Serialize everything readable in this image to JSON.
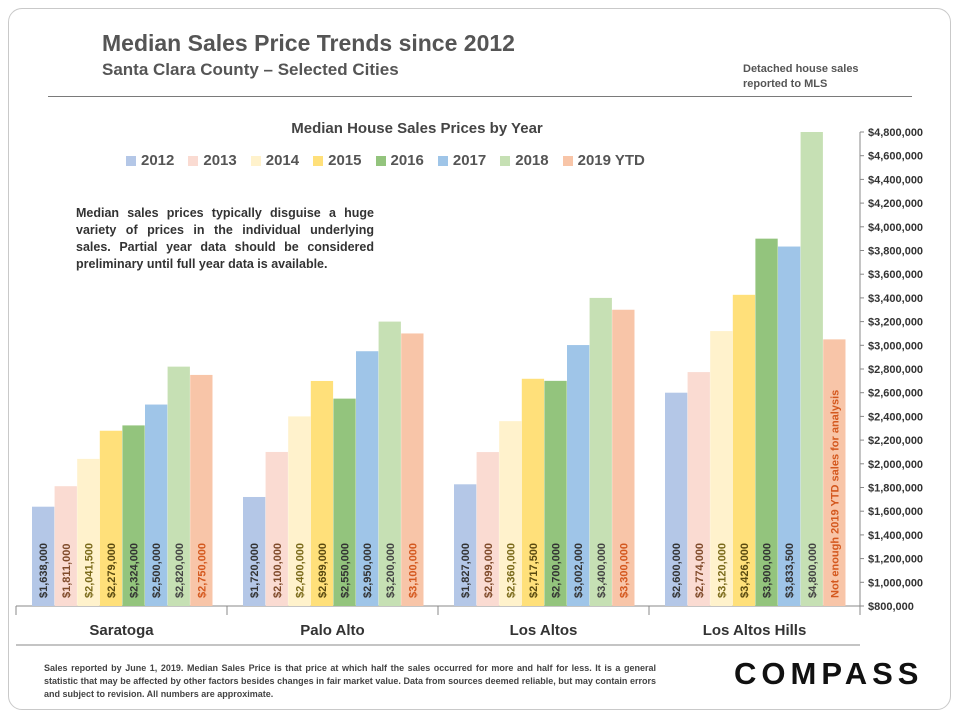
{
  "header": {
    "title": "Median Sales Price Trends since 2012",
    "subtitle": "Santa Clara County – Selected Cities",
    "source_note_line1": "Detached house sales",
    "source_note_line2": "reported to MLS"
  },
  "annotation": "Median sales prices typically disguise a huge variety of prices in the individual underlying sales. Partial year data should be considered preliminary until full year data is available.",
  "footnote": "Sales reported by June 1, 2019. Median Sales Price is that price at which half the sales occurred for more and half for less. It is a general statistic that may be affected by other factors besides changes in fair market value. Data from sources deemed reliable, but may contain errors and subject to revision.  All numbers are approximate.",
  "logo": "COMPASS",
  "colors": {
    "2012": "#b4c7e7",
    "2013": "#fadbd2",
    "2014": "#fff2cc",
    "2015": "#ffe07a",
    "2016": "#93c47d",
    "2017": "#9fc5e8",
    "2018": "#c6e0b4",
    "2019 YTD": "#f8c5a8",
    "label_2012": "#333333",
    "label_2013": "#7f4a2a",
    "label_2014": "#7a6a1a",
    "label_2015": "#5a4a10",
    "label_2016": "#333333",
    "label_2017": "#333333",
    "label_2018": "#444444",
    "label_2019 YTD": "#d4581e"
  },
  "chart_data": {
    "type": "bar",
    "title": "Median House Sales Prices by Year",
    "categories": [
      "Saratoga",
      "Palo Alto",
      "Los Altos",
      "Los Altos Hills"
    ],
    "series": [
      {
        "name": "2012",
        "values": [
          1638000,
          1720000,
          1827000,
          2600000
        ],
        "labels": [
          "$1,638,000",
          "$1,720,000",
          "$1,827,000",
          "$2,600,000"
        ]
      },
      {
        "name": "2013",
        "values": [
          1811000,
          2100000,
          2099000,
          2774000
        ],
        "labels": [
          "$1,811,000",
          "$2,100,000",
          "$2,099,000",
          "$2,774,000"
        ]
      },
      {
        "name": "2014",
        "values": [
          2041500,
          2400000,
          2360000,
          3120000
        ],
        "labels": [
          "$2,041,500",
          "$2,400,000",
          "$2,360,000",
          "$3,120,000"
        ]
      },
      {
        "name": "2015",
        "values": [
          2279000,
          2699000,
          2717500,
          3426000
        ],
        "labels": [
          "$2,279,000",
          "$2,699,000",
          "$2,717,500",
          "$3,426,000"
        ]
      },
      {
        "name": "2016",
        "values": [
          2324000,
          2550000,
          2700000,
          3900000
        ],
        "labels": [
          "$2,324,000",
          "$2,550,000",
          "$2,700,000",
          "$3,900,000"
        ]
      },
      {
        "name": "2017",
        "values": [
          2500000,
          2950000,
          3002000,
          3833500
        ],
        "labels": [
          "$2,500,000",
          "$2,950,000",
          "$3,002,000",
          "$3,833,500"
        ]
      },
      {
        "name": "2018",
        "values": [
          2820000,
          3200000,
          3400000,
          4800000
        ],
        "labels": [
          "$2,820,000",
          "$3,200,000",
          "$3,400,000",
          "$4,800,000"
        ]
      },
      {
        "name": "2019 YTD",
        "values": [
          2750000,
          3100000,
          3300000,
          3050000
        ],
        "labels": [
          "$2,750,000",
          "$3,100,000",
          "$3,300,000",
          "Not enough 2019 YTD sales for analysis"
        ]
      }
    ],
    "ylim": [
      800000,
      4800000
    ],
    "y_ticks": [
      800000,
      1000000,
      1200000,
      1400000,
      1600000,
      1800000,
      2000000,
      2200000,
      2400000,
      2600000,
      2800000,
      3000000,
      3200000,
      3400000,
      3600000,
      3800000,
      4000000,
      4200000,
      4400000,
      4600000,
      4800000
    ],
    "y_tick_labels": [
      "$800,000",
      "$1,000,000",
      "$1,200,000",
      "$1,400,000",
      "$1,600,000",
      "$1,800,000",
      "$2,000,000",
      "$2,200,000",
      "$2,400,000",
      "$2,600,000",
      "$2,800,000",
      "$3,000,000",
      "$3,200,000",
      "$3,400,000",
      "$3,600,000",
      "$3,800,000",
      "$4,000,000",
      "$4,200,000",
      "$4,400,000",
      "$4,600,000",
      "$4,800,000"
    ],
    "y_axis_side": "right",
    "legend_position": "top",
    "grid": false
  }
}
